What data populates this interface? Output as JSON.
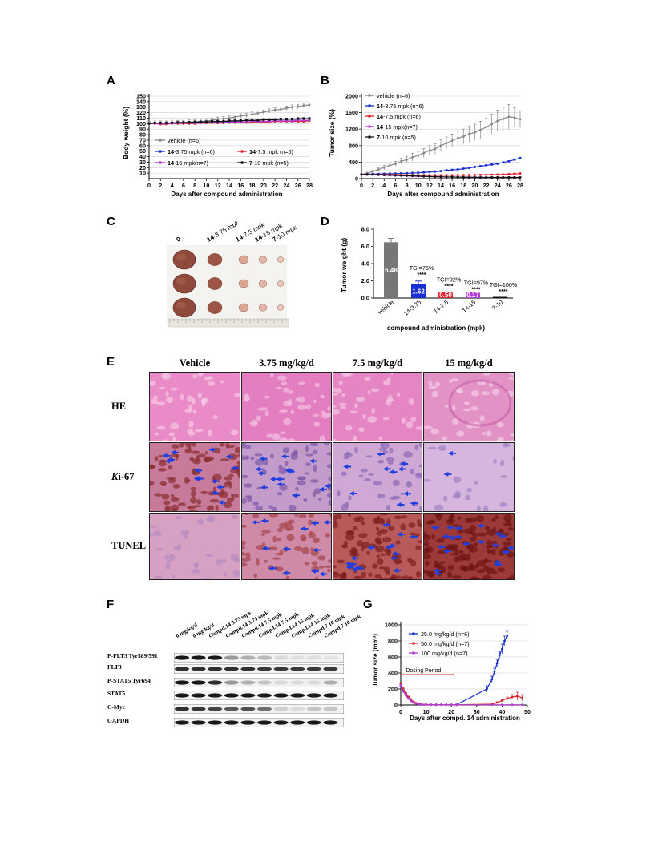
{
  "panels": {
    "A": {
      "label": "A",
      "ylabel": "Body weight (%)",
      "xlabel": "Days after compound administration",
      "yticks": [
        "150",
        "140",
        "130",
        "120",
        "110",
        "100",
        "90",
        "80",
        "70",
        "60",
        "50",
        "40",
        "30",
        "20",
        "10"
      ],
      "xticks": [
        "0",
        "2",
        "4",
        "6",
        "8",
        "10",
        "12",
        "14",
        "16",
        "18",
        "20",
        "22",
        "24",
        "26",
        "28"
      ],
      "legend": [
        {
          "prefix": "",
          "text": "vehicle (n=6)",
          "color": "#888888"
        },
        {
          "prefix": "14",
          "text": "-3.75 mpk (n=6)",
          "color": "#1a2fd0"
        },
        {
          "prefix": "14",
          "text": "-7.5 mpk (n=6)",
          "color": "#e0202a"
        },
        {
          "prefix": "14",
          "text": "-15 mpk(n=7)",
          "color": "#b63ad4"
        },
        {
          "prefix": "7",
          "text": "-10 mpk (n=5)",
          "color": "#111111"
        }
      ]
    },
    "B": {
      "label": "B",
      "ylabel": "Tumor size (%)",
      "xlabel": "Days after compound administration",
      "yticks": [
        "2000",
        "1600",
        "1200",
        "800",
        "400",
        "0"
      ],
      "xticks": [
        "0",
        "2",
        "4",
        "6",
        "8",
        "10",
        "12",
        "14",
        "16",
        "18",
        "20",
        "22",
        "24",
        "26",
        "28"
      ],
      "legend": [
        {
          "prefix": "",
          "text": "vehicle (n=6)",
          "color": "#888888"
        },
        {
          "prefix": "14",
          "text": "-3.75 mpk (n=6)",
          "color": "#1a2fd0"
        },
        {
          "prefix": "14",
          "text": "-7.5 mpk (n=6)",
          "color": "#e0202a"
        },
        {
          "prefix": "14",
          "text": "-15 mpk(n=7)",
          "color": "#b63ad4"
        },
        {
          "prefix": "7",
          "text": "-10 mpk (n=5)",
          "color": "#111111"
        }
      ]
    },
    "C": {
      "label": "C",
      "columns": [
        {
          "prefix": "",
          "text": "0"
        },
        {
          "prefix": "14",
          "text": "-3.75 mpk"
        },
        {
          "prefix": "14",
          "text": "-7.5 mpk"
        },
        {
          "prefix": "14",
          "text": "-15 mpk"
        },
        {
          "prefix": "7",
          "text": "-10 mpk"
        }
      ]
    },
    "D": {
      "label": "D",
      "ylabel": "Tumor weight (g)",
      "xlabel": "compound administration (mpk)",
      "yticks": [
        "8.0",
        "6.0",
        "4.0",
        "2.0",
        "0.0"
      ]
    },
    "E": {
      "label": "E",
      "columns": [
        "Vehicle",
        "3.75 mg/kg/d",
        "7.5 mg/kg/d",
        "15 mg/kg/d"
      ],
      "rows": [
        {
          "italic": "",
          "text": "HE"
        },
        {
          "italic": "K",
          "text": "i-67"
        },
        {
          "italic": "",
          "text": "TUNEL"
        }
      ]
    },
    "F": {
      "label": "F",
      "lanes": [
        "0 mg/kg/d",
        "0 mg/kg/d",
        "Compd.14 3.75 mpk",
        "Compd.14 3.75 mpk",
        "Compd.14 7.5 mpk",
        "Compd.14 7.5 mpk",
        "Compd.14 15 mpk",
        "Compd.14 15 mpk",
        "Compd.7 10 mpk",
        "Compd.7 10 mpk"
      ],
      "rows": [
        "P-FLT3 Tyr589/591",
        "FLT3",
        "P-STAT5 Tyr694",
        "STAT5",
        "C-Myc",
        "GAPDH"
      ]
    },
    "G": {
      "label": "G",
      "ylabel": "Tumor size (mm³)",
      "xlabel": "Days after compd. 14 administration",
      "yticks": [
        "1000",
        "800",
        "600",
        "400",
        "200",
        "0"
      ],
      "xticks": [
        "0",
        "10",
        "20",
        "30",
        "40",
        "50"
      ],
      "dosing_label": "Dosing Period",
      "legend": [
        {
          "text": "25.0 mg/kg/d (n=6)",
          "color": "#1a2fd0"
        },
        {
          "text": "50.0 mg/kg/d (n=7)",
          "color": "#e0202a"
        },
        {
          "text": "100 mg/kg/d (n=7)",
          "color": "#b63ad4"
        }
      ]
    }
  },
  "chart_data": [
    {
      "id": "A",
      "type": "line",
      "x": [
        0,
        1,
        2,
        3,
        4,
        5,
        6,
        7,
        8,
        9,
        10,
        11,
        12,
        13,
        14,
        15,
        16,
        17,
        18,
        19,
        20,
        21,
        22,
        23,
        24,
        25,
        26,
        27,
        28
      ],
      "ylim": [
        0,
        150
      ],
      "xlim": [
        0,
        28
      ],
      "series": [
        {
          "name": "vehicle (n=6)",
          "color": "#888888",
          "values": [
            100,
            101,
            101,
            101,
            102,
            102,
            102,
            103,
            103,
            104,
            105,
            106,
            108,
            109,
            110,
            112,
            114,
            115,
            117,
            119,
            121,
            123,
            125,
            126,
            128,
            130,
            131,
            133,
            134
          ],
          "err": 4
        },
        {
          "name": "14-3.75 mpk (n=6)",
          "color": "#1a2fd0",
          "values": [
            100,
            100,
            100,
            100,
            101,
            101,
            101,
            102,
            102,
            102,
            102,
            103,
            103,
            104,
            104,
            105,
            105,
            106,
            106,
            106,
            107,
            107,
            107,
            108,
            108,
            108,
            108,
            109,
            109
          ],
          "err": 2
        },
        {
          "name": "14-7.5 mpk (n=6)",
          "color": "#e0202a",
          "values": [
            100,
            100,
            99,
            99,
            100,
            100,
            100,
            100,
            100,
            101,
            101,
            101,
            101,
            101,
            102,
            102,
            102,
            102,
            103,
            103,
            103,
            103,
            104,
            104,
            104,
            104,
            104,
            104,
            105
          ],
          "err": 2
        },
        {
          "name": "14-15 mpk(n=7)",
          "color": "#b63ad4",
          "values": [
            100,
            100,
            100,
            100,
            100,
            101,
            101,
            101,
            101,
            101,
            102,
            102,
            102,
            102,
            103,
            103,
            103,
            103,
            104,
            104,
            104,
            104,
            105,
            105,
            105,
            105,
            106,
            106,
            106
          ],
          "err": 2
        },
        {
          "name": "7-10 mpk (n=5)",
          "color": "#111111",
          "values": [
            100,
            101,
            101,
            101,
            101,
            102,
            102,
            102,
            103,
            103,
            103,
            104,
            104,
            104,
            105,
            105,
            105,
            106,
            106,
            106,
            107,
            107,
            107,
            108,
            108,
            108,
            109,
            109,
            109
          ],
          "err": 2
        }
      ]
    },
    {
      "id": "B",
      "type": "line",
      "x": [
        0,
        1,
        2,
        3,
        4,
        5,
        6,
        7,
        8,
        9,
        10,
        11,
        12,
        13,
        14,
        15,
        16,
        17,
        18,
        19,
        20,
        21,
        22,
        23,
        24,
        25,
        26,
        27,
        28
      ],
      "ylim": [
        0,
        2000
      ],
      "xlim": [
        0,
        28
      ],
      "series": [
        {
          "name": "vehicle (n=6)",
          "color": "#888888",
          "values": [
            100,
            130,
            170,
            220,
            270,
            320,
            360,
            420,
            460,
            520,
            560,
            620,
            680,
            720,
            800,
            860,
            920,
            980,
            1020,
            1080,
            1120,
            1180,
            1250,
            1320,
            1400,
            1450,
            1500,
            1480,
            1440
          ],
          "err": [
            20,
            25,
            30,
            40,
            50,
            55,
            60,
            70,
            80,
            90,
            100,
            110,
            120,
            130,
            140,
            150,
            160,
            170,
            180,
            190,
            200,
            210,
            220,
            240,
            260,
            280,
            300,
            240,
            200
          ]
        },
        {
          "name": "14-3.75 mpk (n=6)",
          "color": "#1a2fd0",
          "values": [
            100,
            105,
            110,
            112,
            115,
            118,
            120,
            125,
            130,
            135,
            140,
            150,
            160,
            170,
            180,
            200,
            210,
            220,
            240,
            260,
            280,
            300,
            320,
            340,
            360,
            390,
            420,
            460,
            500
          ],
          "err": 20
        },
        {
          "name": "14-7.5 mpk (n=6)",
          "color": "#e0202a",
          "values": [
            100,
            100,
            98,
            96,
            95,
            94,
            92,
            90,
            88,
            86,
            85,
            84,
            83,
            82,
            82,
            82,
            83,
            84,
            85,
            86,
            88,
            90,
            92,
            95,
            98,
            102,
            108,
            115,
            125
          ],
          "err": 15
        },
        {
          "name": "14-15 mpk(n=7)",
          "color": "#b63ad4",
          "values": [
            100,
            98,
            95,
            90,
            85,
            80,
            75,
            70,
            65,
            60,
            55,
            50,
            48,
            46,
            44,
            42,
            40,
            38,
            36,
            34,
            32,
            31,
            30,
            30,
            30,
            30,
            30,
            30,
            30
          ],
          "err": 10
        },
        {
          "name": "7-10 mpk (n=5)",
          "color": "#111111",
          "values": [
            100,
            98,
            95,
            92,
            88,
            84,
            80,
            75,
            70,
            65,
            60,
            55,
            50,
            45,
            42,
            40,
            38,
            36,
            34,
            32,
            31,
            30,
            30,
            30,
            30,
            30,
            30,
            30,
            30
          ],
          "err": 10
        }
      ]
    },
    {
      "id": "D",
      "type": "bar",
      "categories": [
        "vehicle",
        "14-3.75",
        "14-7.5",
        "14-15",
        "7-10"
      ],
      "ylim": [
        0,
        8
      ],
      "series": [
        {
          "values": [
            6.48,
            1.62,
            0.5,
            0.17,
            0
          ],
          "colors": [
            "#777777",
            "#1a2fd0",
            "#e0202a",
            "#b63ad4",
            "#111111"
          ],
          "err": [
            0.45,
            0.35,
            0.12,
            0.05,
            0
          ]
        }
      ],
      "bar_labels": [
        "6.48",
        "1.62",
        "0.50",
        "0.17",
        ""
      ],
      "annotations": [
        {
          "category": "14-3.75",
          "tgi": "TGI=75%",
          "stars": "****"
        },
        {
          "category": "14-7.5",
          "tgi": "TGI=92%",
          "stars": "****"
        },
        {
          "category": "14-15",
          "tgi": "TGI=97%",
          "stars": "****"
        },
        {
          "category": "7-10",
          "tgi": "TGI=100%",
          "stars": "****"
        }
      ]
    },
    {
      "id": "G",
      "type": "line",
      "xlim": [
        0,
        50
      ],
      "ylim": [
        0,
        1000
      ],
      "series": [
        {
          "name": "25.0 mg/kg/d (n=6)",
          "color": "#1a2fd0",
          "x": [
            0,
            1,
            2,
            3,
            4,
            5,
            6,
            7,
            8,
            10,
            12,
            14,
            16,
            18,
            20,
            22,
            34,
            36,
            37,
            38,
            39,
            40,
            41,
            42
          ],
          "values": [
            230,
            180,
            130,
            90,
            60,
            35,
            20,
            12,
            8,
            5,
            4,
            3,
            3,
            3,
            3,
            3,
            200,
            320,
            420,
            520,
            620,
            700,
            800,
            860
          ],
          "err": [
            20,
            20,
            15,
            12,
            10,
            8,
            5,
            4,
            3,
            2,
            2,
            2,
            2,
            2,
            2,
            2,
            40,
            40,
            40,
            50,
            50,
            60,
            60,
            60
          ]
        },
        {
          "name": "50.0 mg/kg/d (n=7)",
          "color": "#e0202a",
          "x": [
            0,
            1,
            2,
            3,
            4,
            5,
            6,
            7,
            8,
            10,
            12,
            14,
            16,
            18,
            20,
            22,
            36,
            38,
            40,
            42,
            44,
            46,
            48
          ],
          "values": [
            260,
            200,
            140,
            100,
            70,
            40,
            25,
            15,
            10,
            6,
            4,
            3,
            3,
            3,
            3,
            3,
            10,
            30,
            55,
            80,
            100,
            110,
            90
          ],
          "err": [
            20,
            20,
            15,
            12,
            10,
            8,
            5,
            4,
            3,
            2,
            2,
            2,
            2,
            2,
            2,
            2,
            5,
            10,
            15,
            20,
            30,
            50,
            40
          ]
        },
        {
          "name": "100 mg/kg/d (n=7)",
          "color": "#b63ad4",
          "x": [
            0,
            1,
            2,
            3,
            4,
            5,
            6,
            7,
            8,
            10,
            12,
            14,
            16,
            18,
            20,
            22,
            36,
            40,
            44,
            48
          ],
          "values": [
            240,
            170,
            120,
            80,
            50,
            30,
            15,
            10,
            6,
            4,
            3,
            3,
            3,
            3,
            3,
            3,
            3,
            3,
            3,
            3
          ],
          "err": [
            15,
            15,
            12,
            10,
            8,
            6,
            4,
            3,
            2,
            2,
            2,
            2,
            2,
            2,
            2,
            2,
            2,
            2,
            2,
            2
          ]
        }
      ],
      "dosing_period": [
        0,
        21
      ]
    }
  ]
}
